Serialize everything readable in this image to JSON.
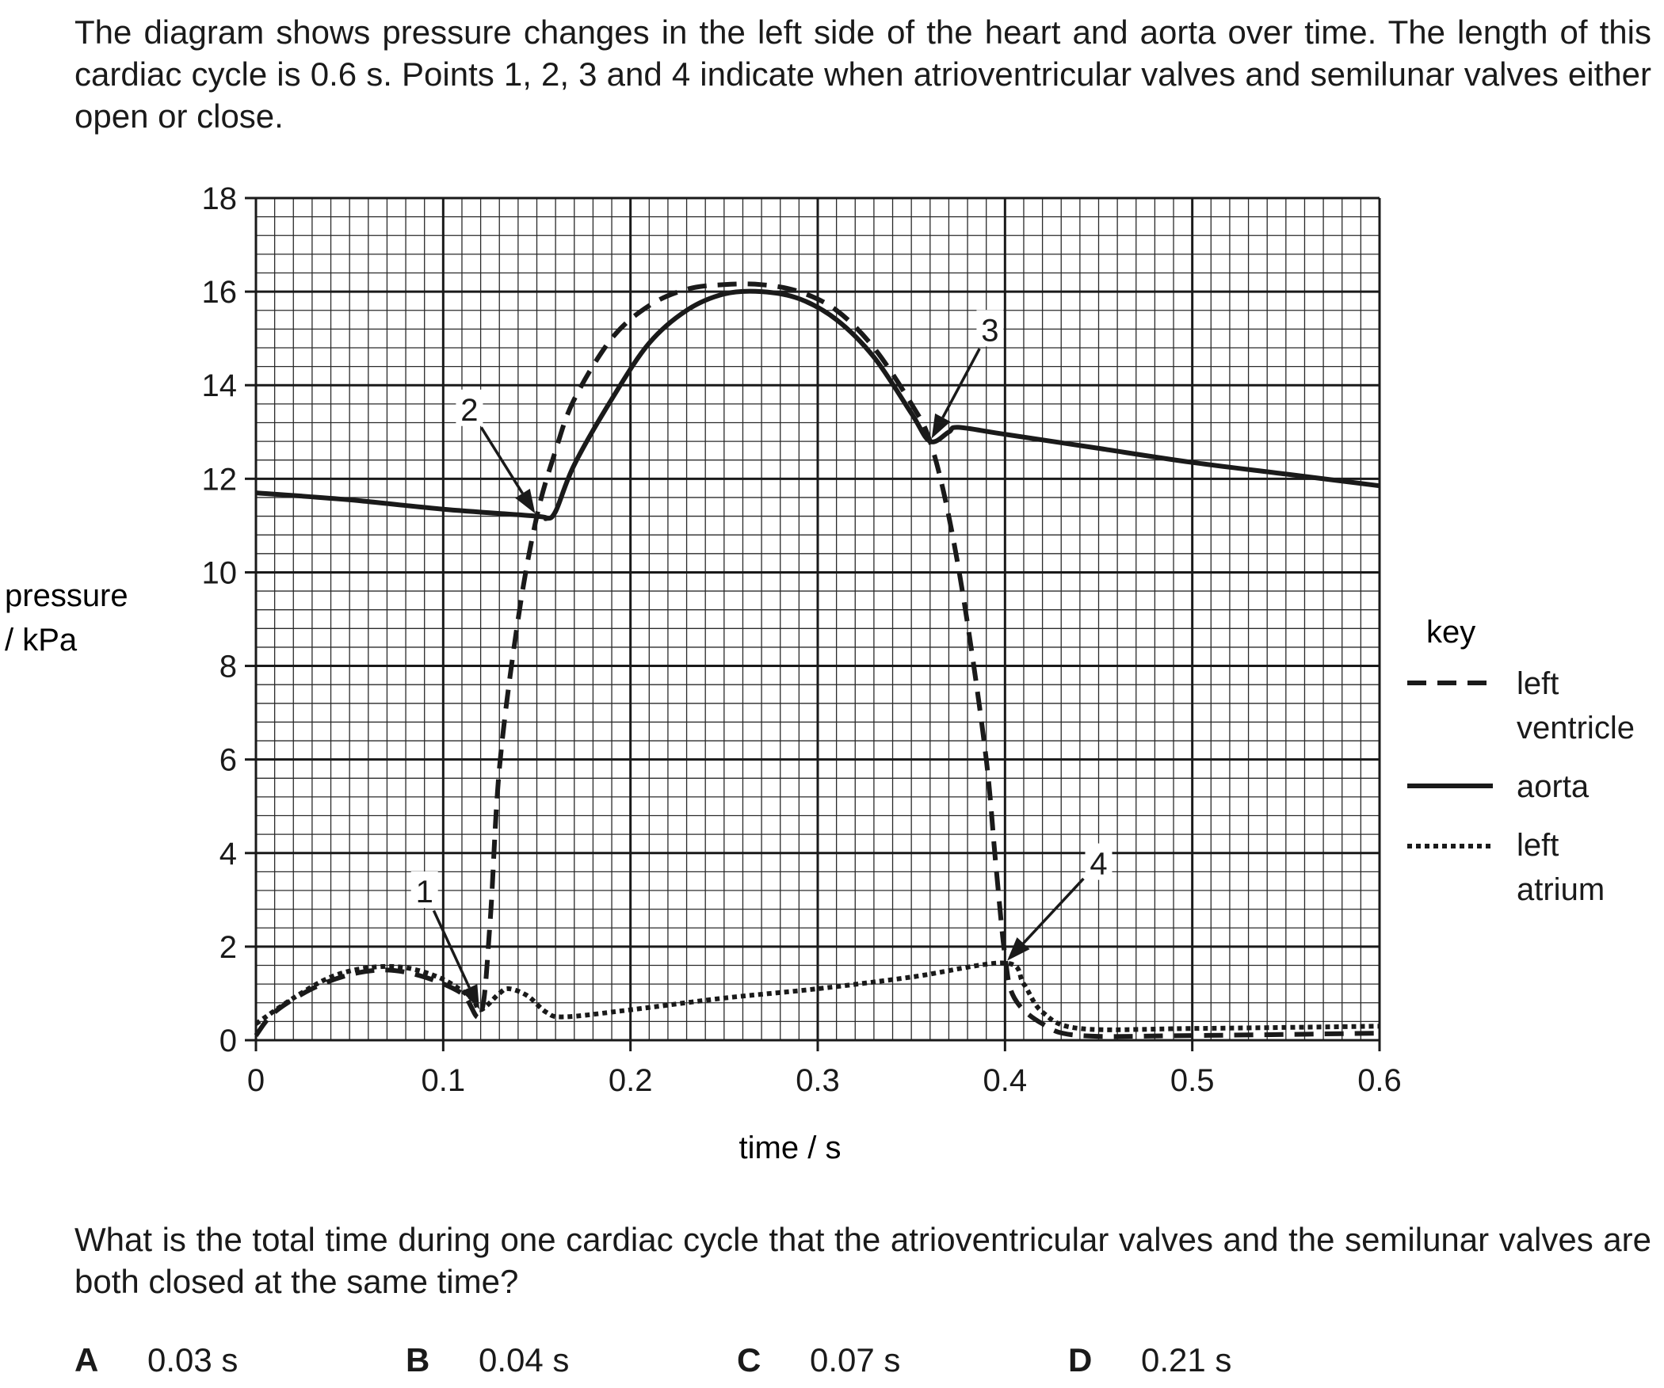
{
  "intro_text": "The diagram shows pressure changes in the left side of the heart and aorta over time. The length of this cardiac cycle is 0.6 s. Points 1, 2, 3 and 4 indicate when atrioventricular valves and semilunar valves either open or close.",
  "question_text": "What is the total time during one cardiac cycle that the atrioventricular valves and the semilunar valves are both closed at the same time?",
  "options": [
    {
      "letter": "A",
      "value": "0.03 s"
    },
    {
      "letter": "B",
      "value": "0.04 s"
    },
    {
      "letter": "C",
      "value": "0.07 s"
    },
    {
      "letter": "D",
      "value": "0.21 s"
    }
  ],
  "chart_data": {
    "type": "line",
    "title": "",
    "xlabel": "time / s",
    "ylabel_line1": "pressure",
    "ylabel_line2": "/ kPa",
    "xlim": [
      0,
      0.6
    ],
    "ylim": [
      0,
      18
    ],
    "x_ticks": [
      0,
      0.1,
      0.2,
      0.3,
      0.4,
      0.5,
      0.6
    ],
    "x_tick_labels": [
      "0",
      "0.1",
      "0.2",
      "0.3",
      "0.4",
      "0.5",
      "0.6"
    ],
    "y_ticks": [
      0,
      2,
      4,
      6,
      8,
      10,
      12,
      14,
      16,
      18
    ],
    "y_tick_labels": [
      "0",
      "2",
      "4",
      "6",
      "8",
      "10",
      "12",
      "14",
      "16",
      "18"
    ],
    "grid": true,
    "legend": {
      "title": "key",
      "placement": "right",
      "entries": [
        {
          "label_lines": [
            "left",
            "ventricle"
          ],
          "style": "dashed"
        },
        {
          "label_lines": [
            "aorta"
          ],
          "style": "solid"
        },
        {
          "label_lines": [
            "left",
            "atrium"
          ],
          "style": "dotted"
        }
      ]
    },
    "series": [
      {
        "key": "left_ventricle",
        "style": "dashed",
        "points": [
          [
            0,
            0.1
          ],
          [
            0.01,
            0.6
          ],
          [
            0.03,
            1.1
          ],
          [
            0.05,
            1.4
          ],
          [
            0.07,
            1.5
          ],
          [
            0.09,
            1.35
          ],
          [
            0.11,
            1.0
          ],
          [
            0.12,
            0.55
          ],
          [
            0.125,
            2.5
          ],
          [
            0.13,
            5.8
          ],
          [
            0.14,
            9.0
          ],
          [
            0.15,
            11.2
          ],
          [
            0.16,
            12.6
          ],
          [
            0.17,
            13.7
          ],
          [
            0.19,
            15.0
          ],
          [
            0.21,
            15.7
          ],
          [
            0.23,
            16.05
          ],
          [
            0.25,
            16.15
          ],
          [
            0.27,
            16.15
          ],
          [
            0.29,
            16.0
          ],
          [
            0.31,
            15.6
          ],
          [
            0.33,
            14.8
          ],
          [
            0.35,
            13.6
          ],
          [
            0.36,
            12.8
          ],
          [
            0.37,
            11.2
          ],
          [
            0.38,
            8.9
          ],
          [
            0.39,
            6.0
          ],
          [
            0.395,
            3.8
          ],
          [
            0.4,
            1.8
          ],
          [
            0.405,
            0.9
          ],
          [
            0.42,
            0.35
          ],
          [
            0.44,
            0.1
          ],
          [
            0.5,
            0.1
          ],
          [
            0.6,
            0.15
          ]
        ]
      },
      {
        "key": "aorta",
        "style": "solid",
        "points": [
          [
            0,
            11.7
          ],
          [
            0.05,
            11.55
          ],
          [
            0.1,
            11.35
          ],
          [
            0.15,
            11.2
          ],
          [
            0.155,
            11.15
          ],
          [
            0.16,
            11.3
          ],
          [
            0.17,
            12.3
          ],
          [
            0.19,
            13.7
          ],
          [
            0.21,
            14.9
          ],
          [
            0.23,
            15.6
          ],
          [
            0.25,
            15.95
          ],
          [
            0.27,
            16.0
          ],
          [
            0.29,
            15.85
          ],
          [
            0.31,
            15.4
          ],
          [
            0.33,
            14.6
          ],
          [
            0.35,
            13.4
          ],
          [
            0.36,
            12.8
          ],
          [
            0.37,
            13.0
          ],
          [
            0.375,
            13.1
          ],
          [
            0.4,
            12.95
          ],
          [
            0.45,
            12.65
          ],
          [
            0.5,
            12.35
          ],
          [
            0.55,
            12.1
          ],
          [
            0.6,
            11.85
          ]
        ]
      },
      {
        "key": "left_atrium",
        "style": "dotted",
        "points": [
          [
            0,
            0.35
          ],
          [
            0.02,
            0.9
          ],
          [
            0.04,
            1.35
          ],
          [
            0.06,
            1.55
          ],
          [
            0.08,
            1.55
          ],
          [
            0.1,
            1.3
          ],
          [
            0.115,
            0.9
          ],
          [
            0.12,
            0.65
          ],
          [
            0.13,
            1.0
          ],
          [
            0.135,
            1.1
          ],
          [
            0.145,
            0.95
          ],
          [
            0.155,
            0.6
          ],
          [
            0.165,
            0.5
          ],
          [
            0.2,
            0.65
          ],
          [
            0.25,
            0.9
          ],
          [
            0.3,
            1.1
          ],
          [
            0.35,
            1.35
          ],
          [
            0.4,
            1.65
          ],
          [
            0.41,
            1.2
          ],
          [
            0.42,
            0.6
          ],
          [
            0.44,
            0.25
          ],
          [
            0.5,
            0.25
          ],
          [
            0.6,
            0.3
          ]
        ]
      }
    ],
    "annotations": [
      {
        "label": "1",
        "point": [
          0.12,
          0.6
        ]
      },
      {
        "label": "2",
        "point": [
          0.15,
          11.2
        ]
      },
      {
        "label": "3",
        "point": [
          0.36,
          12.8
        ]
      },
      {
        "label": "4",
        "point": [
          0.4,
          1.65
        ]
      }
    ]
  }
}
